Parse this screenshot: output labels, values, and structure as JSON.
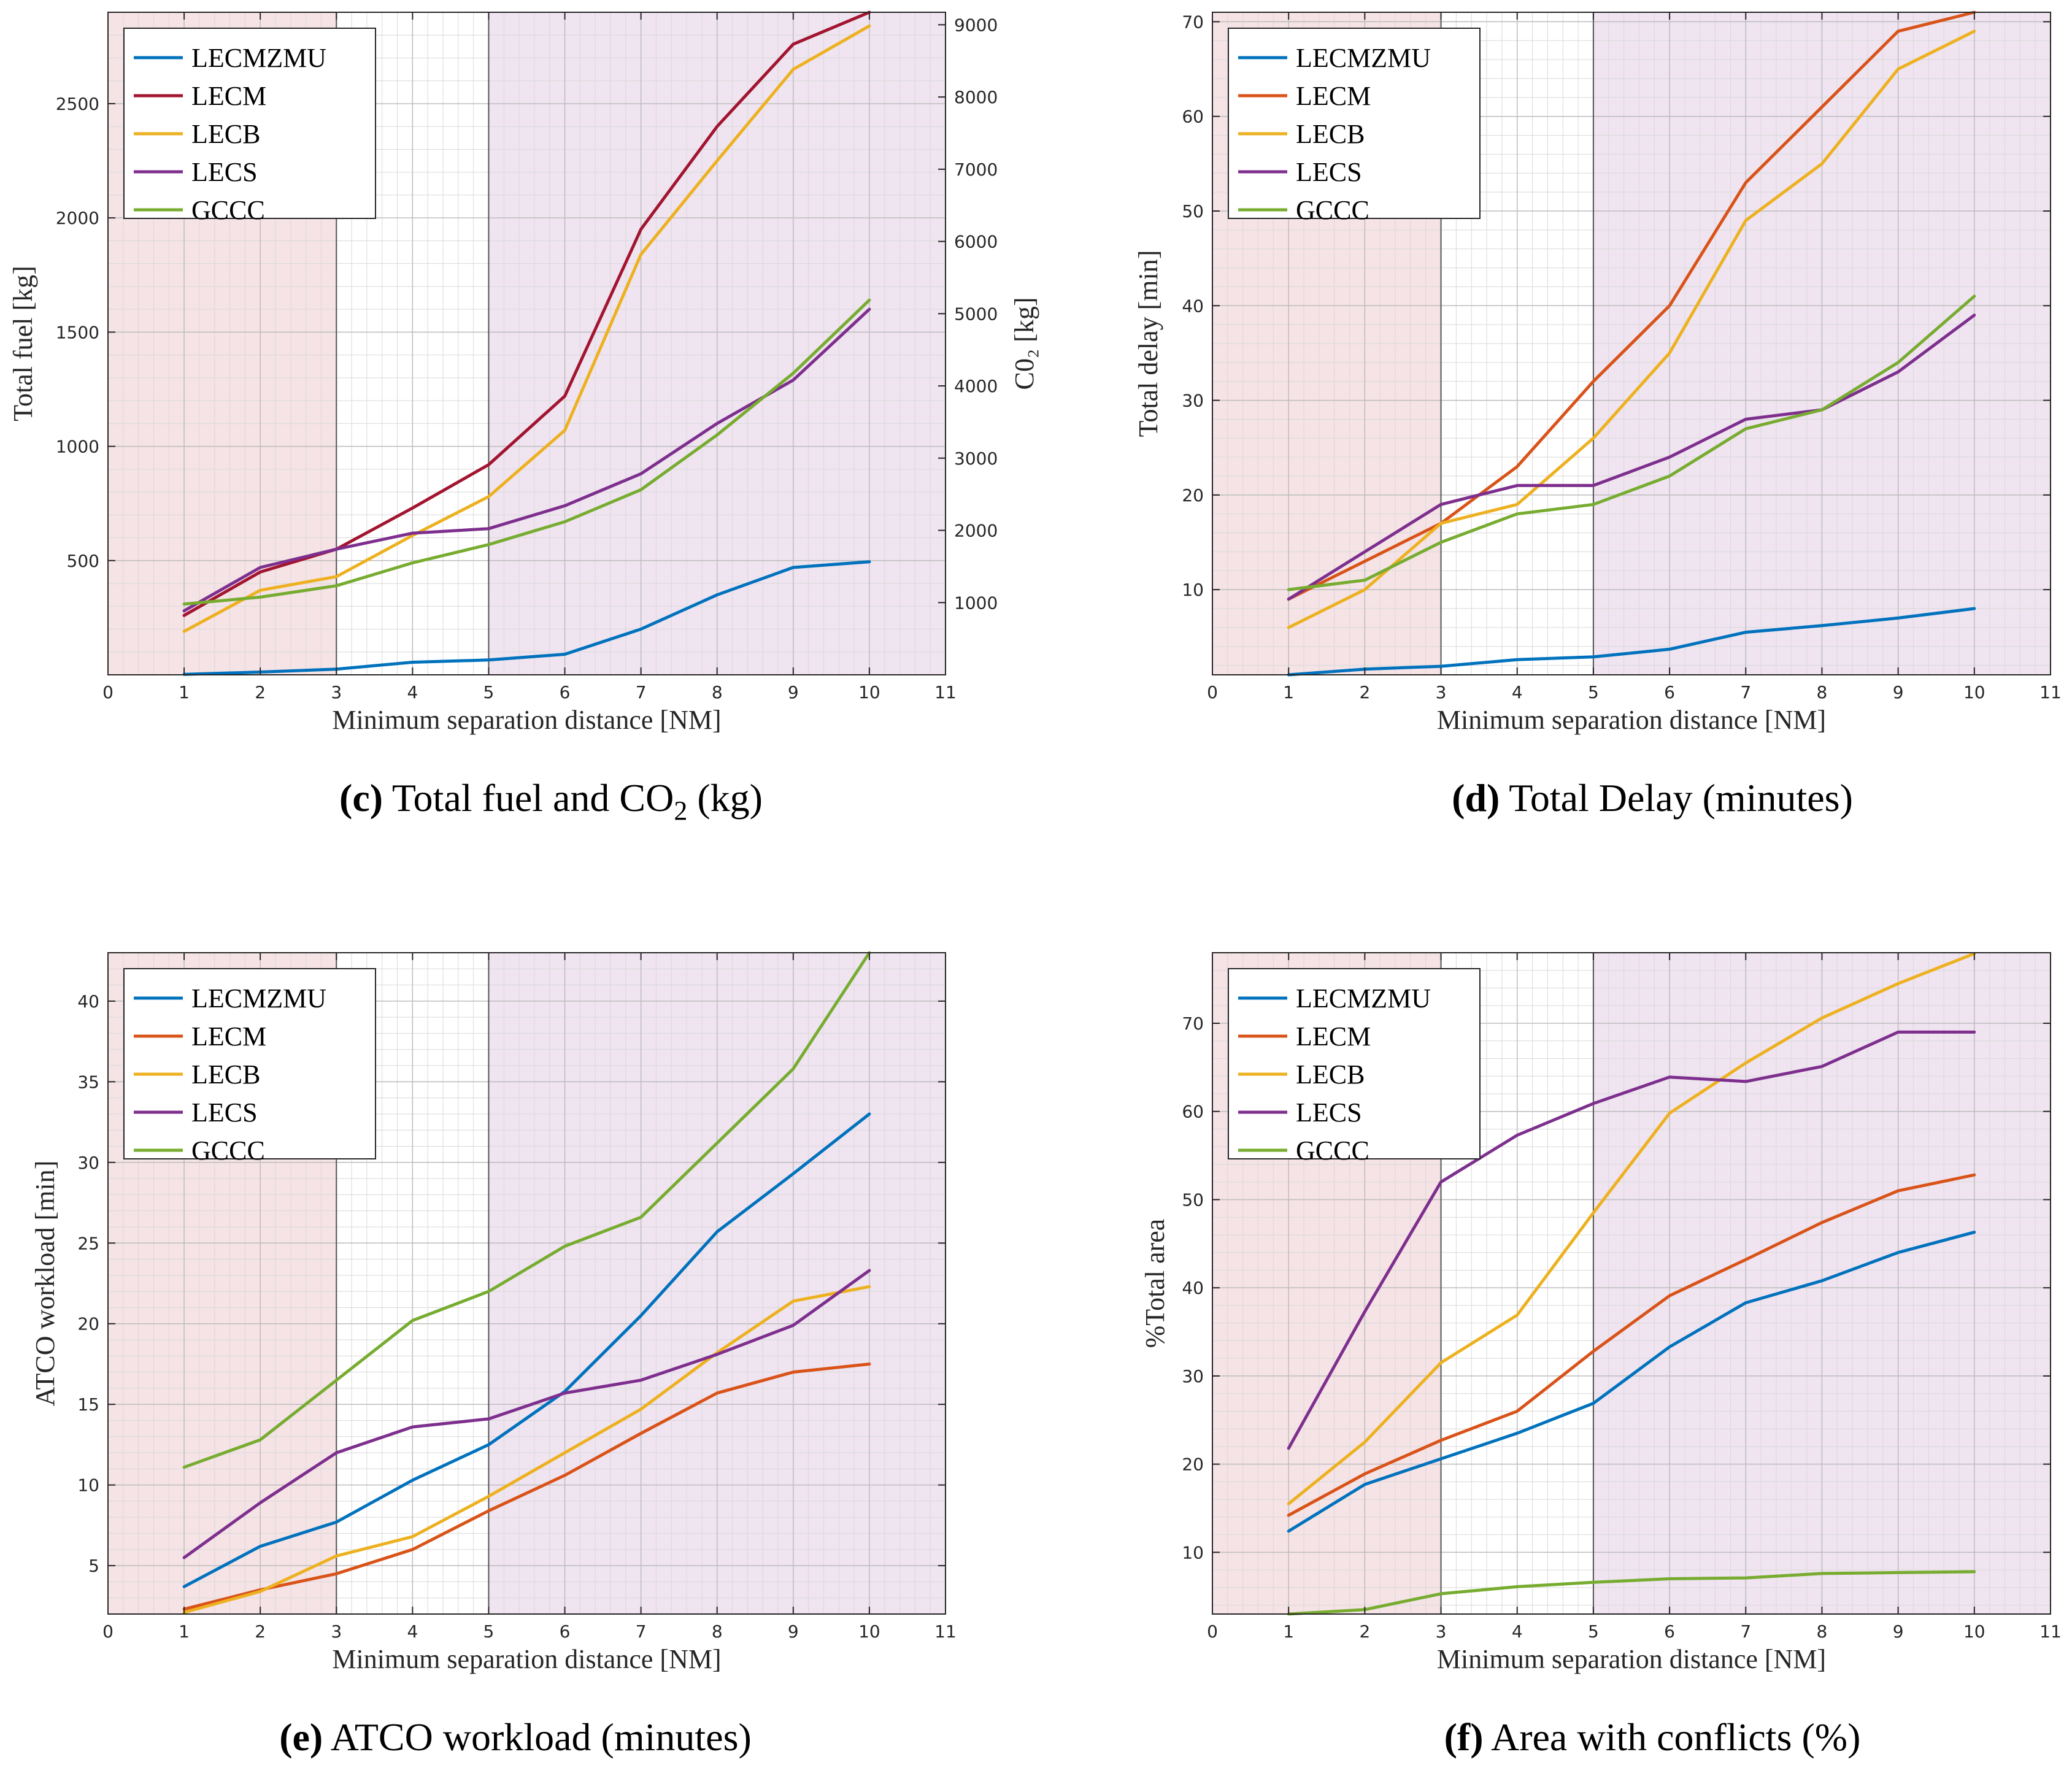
{
  "figure": {
    "xlabel": "Minimum separation distance [NM]"
  },
  "series_meta": [
    {
      "name": "LECMZMU",
      "color": "#0072BD"
    },
    {
      "name": "LECM",
      "color": "#D95319"
    },
    {
      "name": "LECB",
      "color": "#EDB120"
    },
    {
      "name": "LECS",
      "color": "#7E2F8E"
    },
    {
      "name": "GCCC",
      "color": "#77AC30"
    }
  ],
  "shading": {
    "pink": "#f5e3e6",
    "purple": "#efe4f0"
  },
  "chart_data": [
    {
      "id": "c",
      "type": "line",
      "caption": {
        "letter": "(c)",
        "text_before": "Total fuel and CO",
        "sub": "2",
        "text_after": " (kg)"
      },
      "xlabel": "Minimum separation distance [NM]",
      "ylabel": "Total fuel [kg]",
      "y2label": "C0₂ [kg]",
      "xlim": [
        0,
        11
      ],
      "ylim": [
        0,
        2900
      ],
      "y2lim": [
        0,
        9173
      ],
      "yticks": [
        500,
        1000,
        1500,
        2000,
        2500
      ],
      "y2ticks": [
        1000,
        2000,
        3000,
        4000,
        5000,
        6000,
        7000,
        8000,
        9000
      ],
      "xticks": [
        0,
        1,
        2,
        3,
        4,
        5,
        6,
        7,
        8,
        9,
        10,
        11
      ],
      "regions": [
        {
          "x0": 0,
          "x1": 3,
          "color": "pink"
        },
        {
          "x0": 5,
          "x1": 11,
          "color": "purple"
        }
      ],
      "legend": "top-left",
      "x": [
        1,
        2,
        3,
        4,
        5,
        6,
        7,
        8,
        9,
        10
      ],
      "series": [
        {
          "name": "LECMZMU",
          "color": "#0072BD",
          "values": [
            2,
            12,
            25,
            55,
            65,
            90,
            200,
            350,
            470,
            495
          ]
        },
        {
          "name": "LECM",
          "color": "#A2142F",
          "values": [
            260,
            450,
            550,
            730,
            920,
            1220,
            1950,
            2400,
            2760,
            2900
          ]
        },
        {
          "name": "LECB",
          "color": "#EDB120",
          "values": [
            190,
            370,
            430,
            610,
            780,
            1070,
            1840,
            2250,
            2650,
            2840
          ]
        },
        {
          "name": "LECS",
          "color": "#7E2F8E",
          "values": [
            280,
            470,
            550,
            620,
            640,
            740,
            880,
            1100,
            1290,
            1600
          ]
        },
        {
          "name": "GCCC",
          "color": "#77AC30",
          "values": [
            310,
            340,
            390,
            490,
            570,
            670,
            810,
            1050,
            1320,
            1640
          ]
        }
      ]
    },
    {
      "id": "d",
      "type": "line",
      "caption": {
        "letter": "(d)",
        "text_before": "Total Delay (minutes)",
        "sub": "",
        "text_after": ""
      },
      "xlabel": "Minimum separation distance [NM]",
      "ylabel": "Total delay [min]",
      "xlim": [
        0,
        11
      ],
      "ylim": [
        1,
        71
      ],
      "yticks": [
        10,
        20,
        30,
        40,
        50,
        60,
        70
      ],
      "xticks": [
        0,
        1,
        2,
        3,
        4,
        5,
        6,
        7,
        8,
        9,
        10,
        11
      ],
      "regions": [
        {
          "x0": 0,
          "x1": 3,
          "color": "pink"
        },
        {
          "x0": 5,
          "x1": 11,
          "color": "purple"
        }
      ],
      "legend": "top-left",
      "x": [
        1,
        2,
        3,
        4,
        5,
        6,
        7,
        8,
        9,
        10
      ],
      "series": [
        {
          "name": "LECMZMU",
          "color": "#0072BD",
          "values": [
            1,
            1.6,
            1.9,
            2.6,
            2.9,
            3.7,
            5.5,
            6.2,
            7,
            8
          ]
        },
        {
          "name": "LECM",
          "color": "#D95319",
          "values": [
            9,
            13,
            17,
            23,
            32,
            40,
            53,
            61,
            69,
            71
          ]
        },
        {
          "name": "LECB",
          "color": "#EDB120",
          "values": [
            6,
            10,
            17,
            19,
            26,
            35,
            49,
            55,
            65,
            69
          ]
        },
        {
          "name": "LECS",
          "color": "#7E2F8E",
          "values": [
            9,
            14,
            19,
            21,
            21,
            24,
            28,
            29,
            33,
            39
          ]
        },
        {
          "name": "GCCC",
          "color": "#77AC30",
          "values": [
            10,
            11,
            15,
            18,
            19,
            22,
            27,
            29,
            34,
            41
          ]
        }
      ]
    },
    {
      "id": "e",
      "type": "line",
      "caption": {
        "letter": "(e)",
        "text_before": "ATCO workload (minutes)",
        "sub": "",
        "text_after": ""
      },
      "xlabel": "Minimum separation distance [NM]",
      "ylabel": "ATCO workload [min]",
      "xlim": [
        0,
        11
      ],
      "ylim": [
        2,
        43
      ],
      "yticks": [
        5,
        10,
        15,
        20,
        25,
        30,
        35,
        40
      ],
      "xticks": [
        0,
        1,
        2,
        3,
        4,
        5,
        6,
        7,
        8,
        9,
        10,
        11
      ],
      "regions": [
        {
          "x0": 0,
          "x1": 3,
          "color": "pink"
        },
        {
          "x0": 5,
          "x1": 11,
          "color": "purple"
        }
      ],
      "legend": "top-left",
      "x": [
        1,
        2,
        3,
        4,
        5,
        6,
        7,
        8,
        9,
        10
      ],
      "series": [
        {
          "name": "LECMZMU",
          "color": "#0072BD",
          "values": [
            3.7,
            6.2,
            7.7,
            10.3,
            12.5,
            15.8,
            20.5,
            25.7,
            29.3,
            33
          ]
        },
        {
          "name": "LECM",
          "color": "#D95319",
          "values": [
            2.3,
            3.5,
            4.5,
            6,
            8.4,
            10.6,
            13.2,
            15.7,
            17,
            17.5
          ]
        },
        {
          "name": "LECB",
          "color": "#EDB120",
          "values": [
            2.1,
            3.4,
            5.6,
            6.8,
            9.3,
            12,
            14.7,
            18.2,
            21.4,
            22.3
          ]
        },
        {
          "name": "LECS",
          "color": "#7E2F8E",
          "values": [
            5.5,
            8.9,
            12,
            13.6,
            14.1,
            15.7,
            16.5,
            18.1,
            19.9,
            23.3
          ]
        },
        {
          "name": "GCCC",
          "color": "#77AC30",
          "values": [
            11.1,
            12.8,
            16.5,
            20.2,
            22,
            24.8,
            26.6,
            31.2,
            35.8,
            43
          ]
        }
      ]
    },
    {
      "id": "f",
      "type": "line",
      "caption": {
        "letter": "(f)",
        "text_before": "Area with conflicts (%)",
        "sub": "",
        "text_after": ""
      },
      "xlabel": "Minimum separation distance [NM]",
      "ylabel": "%Total area",
      "xlim": [
        0,
        11
      ],
      "ylim": [
        3,
        78
      ],
      "yticks": [
        10,
        20,
        30,
        40,
        50,
        60,
        70
      ],
      "xticks": [
        0,
        1,
        2,
        3,
        4,
        5,
        6,
        7,
        8,
        9,
        10,
        11
      ],
      "regions": [
        {
          "x0": 0,
          "x1": 3,
          "color": "pink"
        },
        {
          "x0": 5,
          "x1": 11,
          "color": "purple"
        }
      ],
      "legend": "top-left",
      "x": [
        1,
        2,
        3,
        4,
        5,
        6,
        7,
        8,
        9,
        10
      ],
      "series": [
        {
          "name": "LECMZMU",
          "color": "#0072BD",
          "values": [
            12.4,
            17.7,
            20.6,
            23.5,
            26.9,
            33.3,
            38.3,
            40.8,
            44,
            46.3
          ]
        },
        {
          "name": "LECM",
          "color": "#D95319",
          "values": [
            14.2,
            18.9,
            22.7,
            26,
            32.8,
            39.1,
            43.2,
            47.4,
            51,
            52.8
          ]
        },
        {
          "name": "LECB",
          "color": "#EDB120",
          "values": [
            15.5,
            22.5,
            31.5,
            36.9,
            48.5,
            59.8,
            65.5,
            70.6,
            74.5,
            77.9
          ]
        },
        {
          "name": "LECS",
          "color": "#7E2F8E",
          "values": [
            21.8,
            37.3,
            52,
            57.3,
            60.9,
            63.9,
            63.4,
            65.1,
            69,
            69
          ]
        },
        {
          "name": "GCCC",
          "color": "#77AC30",
          "values": [
            3,
            3.5,
            5.3,
            6.1,
            6.6,
            7,
            7.1,
            7.6,
            7.7,
            7.8
          ]
        }
      ]
    }
  ]
}
